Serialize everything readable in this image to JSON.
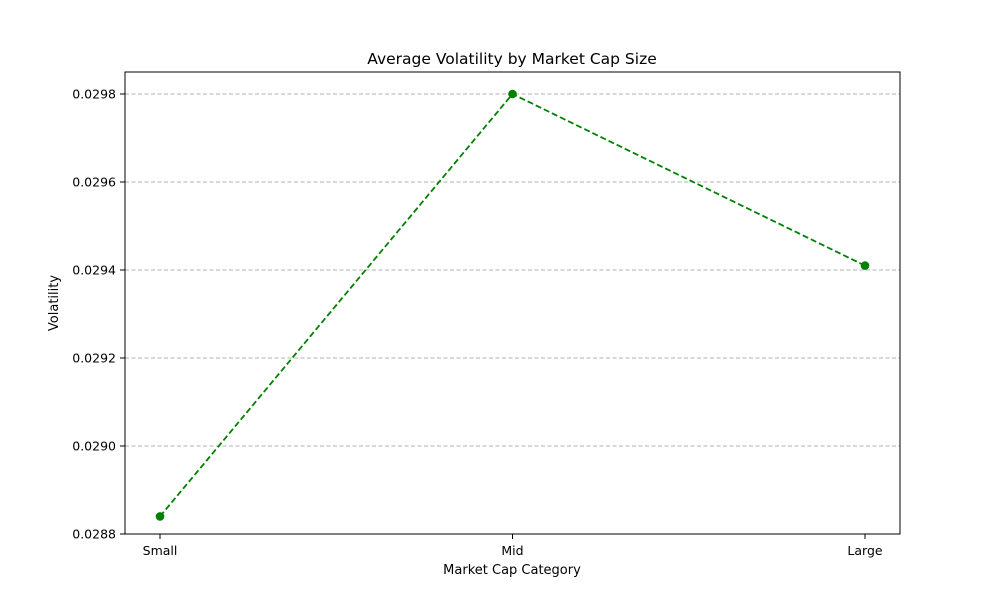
{
  "chart_data": {
    "type": "line",
    "title": "Average Volatility by Market Cap Size",
    "xlabel": "Market Cap Category",
    "ylabel": "Volatility",
    "categories": [
      "Small",
      "Mid",
      "Large"
    ],
    "series": [
      {
        "values": [
          0.02884,
          0.0298,
          0.02941
        ],
        "color": "#008000",
        "line_style": "dashed",
        "marker": "circle"
      }
    ],
    "ylim": [
      0.0288,
      0.02985
    ],
    "yticks": [
      0.0288,
      0.029,
      0.0292,
      0.0294,
      0.0296,
      0.0298
    ],
    "ytick_labels": [
      "0.0288",
      "0.0290",
      "0.0292",
      "0.0294",
      "0.0296",
      "0.0298"
    ],
    "grid": {
      "y": true,
      "x": false,
      "style": "dashed",
      "color": "#b0b0b0"
    }
  }
}
